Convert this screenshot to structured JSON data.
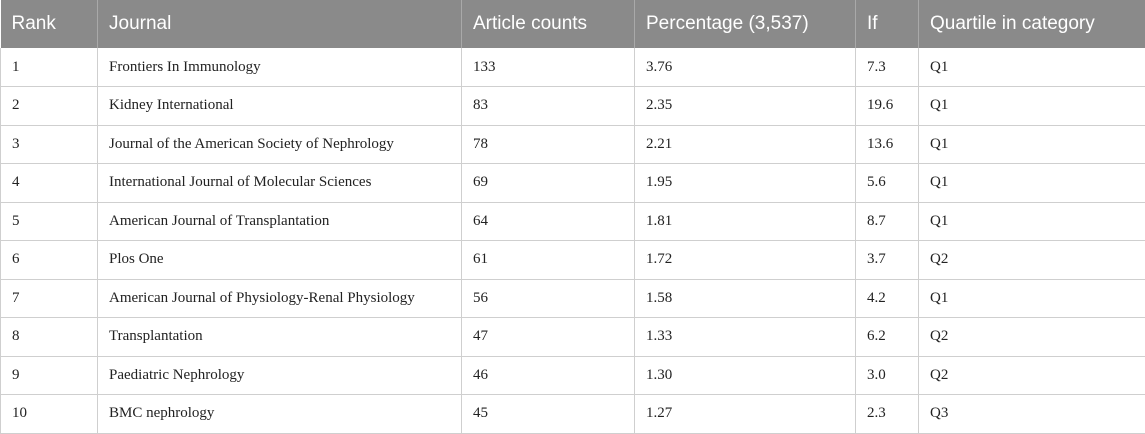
{
  "table": {
    "headers": [
      "Rank",
      "Journal",
      "Article counts",
      "Percentage (3,537)",
      "If",
      "Quartile in category"
    ],
    "rows": [
      [
        "1",
        "Frontiers In Immunology",
        "133",
        "3.76",
        "7.3",
        "Q1"
      ],
      [
        "2",
        "Kidney International",
        "83",
        "2.35",
        "19.6",
        "Q1"
      ],
      [
        "3",
        "Journal of the American Society of Nephrology",
        "78",
        "2.21",
        "13.6",
        "Q1"
      ],
      [
        "4",
        "International Journal of Molecular Sciences",
        "69",
        "1.95",
        "5.6",
        "Q1"
      ],
      [
        "5",
        "American Journal of Transplantation",
        "64",
        "1.81",
        "8.7",
        "Q1"
      ],
      [
        "6",
        "Plos One",
        "61",
        "1.72",
        "3.7",
        "Q2"
      ],
      [
        "7",
        "American Journal of Physiology-Renal Physiology",
        "56",
        "1.58",
        "4.2",
        "Q1"
      ],
      [
        "8",
        "Transplantation",
        "47",
        "1.33",
        "6.2",
        "Q2"
      ],
      [
        "9",
        "Paediatric Nephrology",
        "46",
        "1.30",
        "3.0",
        "Q2"
      ],
      [
        "10",
        "BMC nephrology",
        "45",
        "1.27",
        "2.3",
        "Q3"
      ]
    ]
  }
}
